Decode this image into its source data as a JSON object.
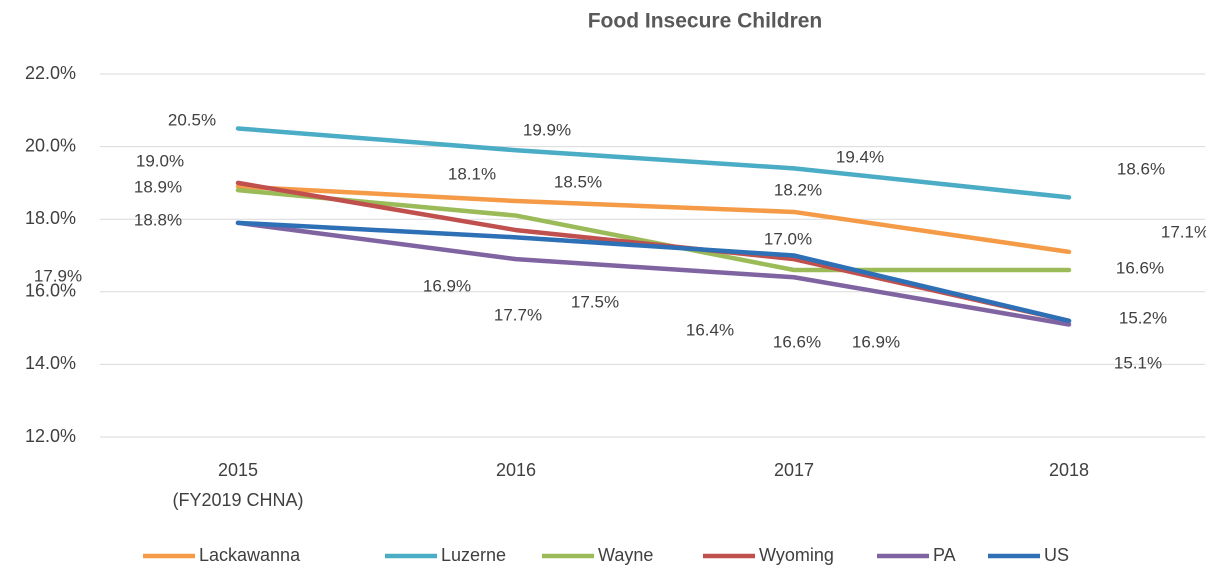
{
  "chart_data": {
    "type": "line",
    "title": "Food Insecure Children",
    "categories": [
      "2015\n(FY2019 CHNA)",
      "2016",
      "2017",
      "2018"
    ],
    "ylim": [
      12,
      22
    ],
    "yticks": [
      {
        "value": 12,
        "label": "12.0%"
      },
      {
        "value": 14,
        "label": "14.0%"
      },
      {
        "value": 16,
        "label": "16.0%"
      },
      {
        "value": 18,
        "label": "18.0%"
      },
      {
        "value": 20,
        "label": "20.0%"
      },
      {
        "value": 22,
        "label": "22.0%"
      }
    ],
    "grid": true,
    "legend": "bottom",
    "series": [
      {
        "name": "Lackawanna",
        "color": "#f59b47",
        "values": [
          18.9,
          18.5,
          18.2,
          17.1
        ],
        "value_labels": [
          "18.9%",
          "18.5%",
          "18.2%",
          "17.1%"
        ]
      },
      {
        "name": "Luzerne",
        "color": "#4bacc6",
        "values": [
          20.5,
          19.9,
          19.4,
          18.6
        ],
        "value_labels": [
          "20.5%",
          "19.9%",
          "19.4%",
          "18.6%"
        ]
      },
      {
        "name": "Wayne",
        "color": "#9bbb59",
        "values": [
          18.8,
          18.1,
          16.6,
          16.6
        ],
        "value_labels": [
          "18.8%",
          "18.1%",
          "16.6%",
          "16.6%"
        ]
      },
      {
        "name": "Wyoming",
        "color": "#c0504d",
        "values": [
          19.0,
          17.7,
          16.9,
          15.2
        ],
        "value_labels": [
          "19.0%",
          "17.7%",
          "16.9%",
          null
        ]
      },
      {
        "name": "PA",
        "color": "#8064a2",
        "values": [
          17.9,
          16.9,
          16.4,
          15.1
        ],
        "value_labels": [
          "17.9%",
          "16.9%",
          "16.4%",
          "15.1%"
        ]
      },
      {
        "name": "US",
        "color": "#2e70b6",
        "values": [
          17.9,
          17.5,
          17.0,
          15.2
        ],
        "value_labels": [
          null,
          "17.5%",
          "17.0%",
          "15.2%"
        ]
      }
    ]
  }
}
